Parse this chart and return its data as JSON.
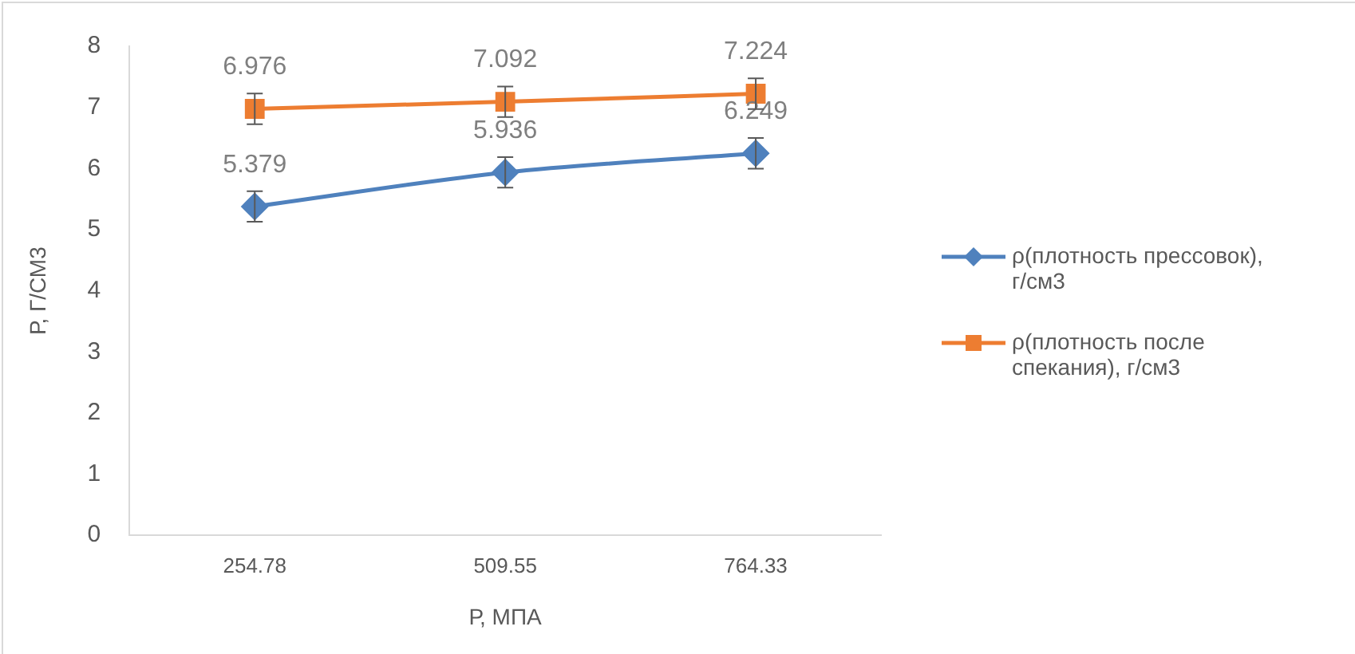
{
  "chart_data": {
    "type": "line",
    "xlabel": "Р, МПА",
    "ylabel": "Р, Г/СМ3",
    "categories": [
      "254.78",
      "509.55",
      "764.33"
    ],
    "series": [
      {
        "name": "ρ(плотность прессовок), г/см3",
        "color": "#4f81bd",
        "marker": "diamond",
        "values": [
          5.379,
          5.936,
          6.249
        ],
        "errors": [
          0.25,
          0.25,
          0.25
        ]
      },
      {
        "name": "ρ(плотность после спекания), г/см3",
        "color": "#ed7d31",
        "marker": "square",
        "values": [
          6.976,
          7.092,
          7.224
        ],
        "errors": [
          0.25,
          0.25,
          0.25
        ]
      }
    ],
    "ylim": [
      0,
      8
    ],
    "yticks": [
      0,
      1,
      2,
      3,
      4,
      5,
      6,
      7,
      8
    ],
    "grid": false,
    "legend": "right",
    "data_labels": true
  }
}
